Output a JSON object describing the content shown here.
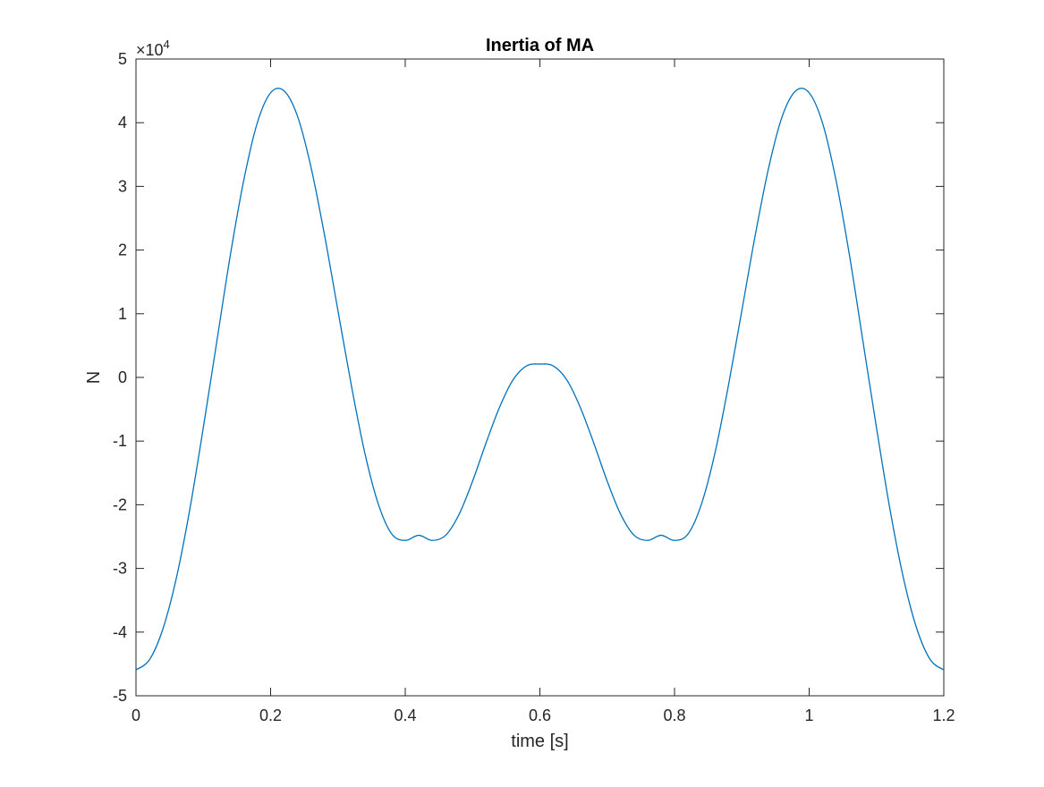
{
  "chart_data": {
    "type": "line",
    "title": "Inertia of MA",
    "xlabel": "time [s]",
    "ylabel": "N",
    "exponent_label": "×10",
    "exponent_power": "4",
    "xlim": [
      0,
      1.2
    ],
    "ylim": [
      -50000,
      50000
    ],
    "xticks": [
      0,
      0.2,
      0.4,
      0.6,
      0.8,
      1.0,
      1.2
    ],
    "xtick_labels": [
      "0",
      "0.2",
      "0.4",
      "0.6",
      "0.8",
      "1",
      "1.2"
    ],
    "yticks": [
      -50000,
      -40000,
      -30000,
      -20000,
      -10000,
      0,
      10000,
      20000,
      30000,
      40000,
      50000
    ],
    "ytick_labels": [
      "-5",
      "-4",
      "-3",
      "-2",
      "-1",
      "0",
      "1",
      "2",
      "3",
      "4",
      "5"
    ],
    "grid": false,
    "series": [
      {
        "color": "#0072BD",
        "x": [
          0.0,
          0.02,
          0.04,
          0.06,
          0.08,
          0.1,
          0.12,
          0.14,
          0.16,
          0.18,
          0.2,
          0.22,
          0.24,
          0.26,
          0.28,
          0.3,
          0.32,
          0.34,
          0.36,
          0.38,
          0.4,
          0.42,
          0.44,
          0.46,
          0.48,
          0.5,
          0.52,
          0.54,
          0.56,
          0.58,
          0.6,
          0.62,
          0.64,
          0.66,
          0.68,
          0.7,
          0.72,
          0.74,
          0.76,
          0.78,
          0.8,
          0.82,
          0.84,
          0.86,
          0.88,
          0.9,
          0.92,
          0.94,
          0.96,
          0.98,
          1.0,
          1.02,
          1.04,
          1.06,
          1.08,
          1.1,
          1.12,
          1.14,
          1.16,
          1.18,
          1.2
        ],
        "y": [
          -45940,
          -44340,
          -39500,
          -31500,
          -20700,
          -7900,
          5600,
          19100,
          30900,
          39900,
          44700,
          45000,
          41000,
          33000,
          22400,
          10500,
          -1300,
          -11900,
          -19900,
          -24600,
          -25600,
          -24800,
          -25600,
          -24800,
          -21500,
          -16300,
          -10300,
          -4700,
          -400,
          1800,
          2100,
          1800,
          -400,
          -4700,
          -10300,
          -16300,
          -21500,
          -24800,
          -25600,
          -24800,
          -25600,
          -24600,
          -19900,
          -11900,
          -1300,
          10500,
          22400,
          33000,
          41000,
          45000,
          44700,
          39900,
          30900,
          19100,
          5600,
          -7900,
          -20700,
          -31500,
          -39500,
          -44340,
          -45940
        ]
      }
    ]
  }
}
